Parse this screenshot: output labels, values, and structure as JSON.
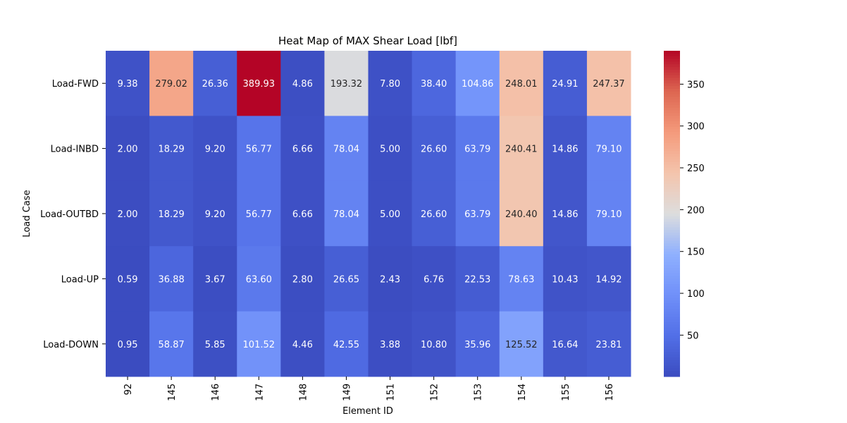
{
  "chart_data": {
    "type": "heatmap",
    "title": "Heat Map of MAX Shear Load [lbf]",
    "xlabel": "Element ID",
    "ylabel": "Load Case",
    "x_categories": [
      "92",
      "145",
      "146",
      "147",
      "148",
      "149",
      "151",
      "152",
      "153",
      "154",
      "155",
      "156"
    ],
    "y_categories": [
      "Load-FWD",
      "Load-INBD",
      "Load-OUTBD",
      "Load-UP",
      "Load-DOWN"
    ],
    "values": [
      [
        9.38,
        279.02,
        26.36,
        389.93,
        4.86,
        193.32,
        7.8,
        38.4,
        104.86,
        248.01,
        24.91,
        247.37
      ],
      [
        2.0,
        18.29,
        9.2,
        56.77,
        6.66,
        78.04,
        5.0,
        26.6,
        63.79,
        240.41,
        14.86,
        79.1
      ],
      [
        2.0,
        18.29,
        9.2,
        56.77,
        6.66,
        78.04,
        5.0,
        26.6,
        63.79,
        240.4,
        14.86,
        79.1
      ],
      [
        0.59,
        36.88,
        3.67,
        63.6,
        2.8,
        26.65,
        2.43,
        6.76,
        22.53,
        78.63,
        10.43,
        14.92
      ],
      [
        0.95,
        58.87,
        5.85,
        101.52,
        4.46,
        42.55,
        3.88,
        10.8,
        35.96,
        125.52,
        16.64,
        23.81
      ]
    ],
    "value_format_decimals": 2,
    "colormap": "coolwarm",
    "color_range": [
      0.59,
      389.93
    ],
    "colorbar_ticks": [
      50,
      100,
      150,
      200,
      250,
      300,
      350
    ],
    "grid": false,
    "legend": "colorbar-right"
  }
}
